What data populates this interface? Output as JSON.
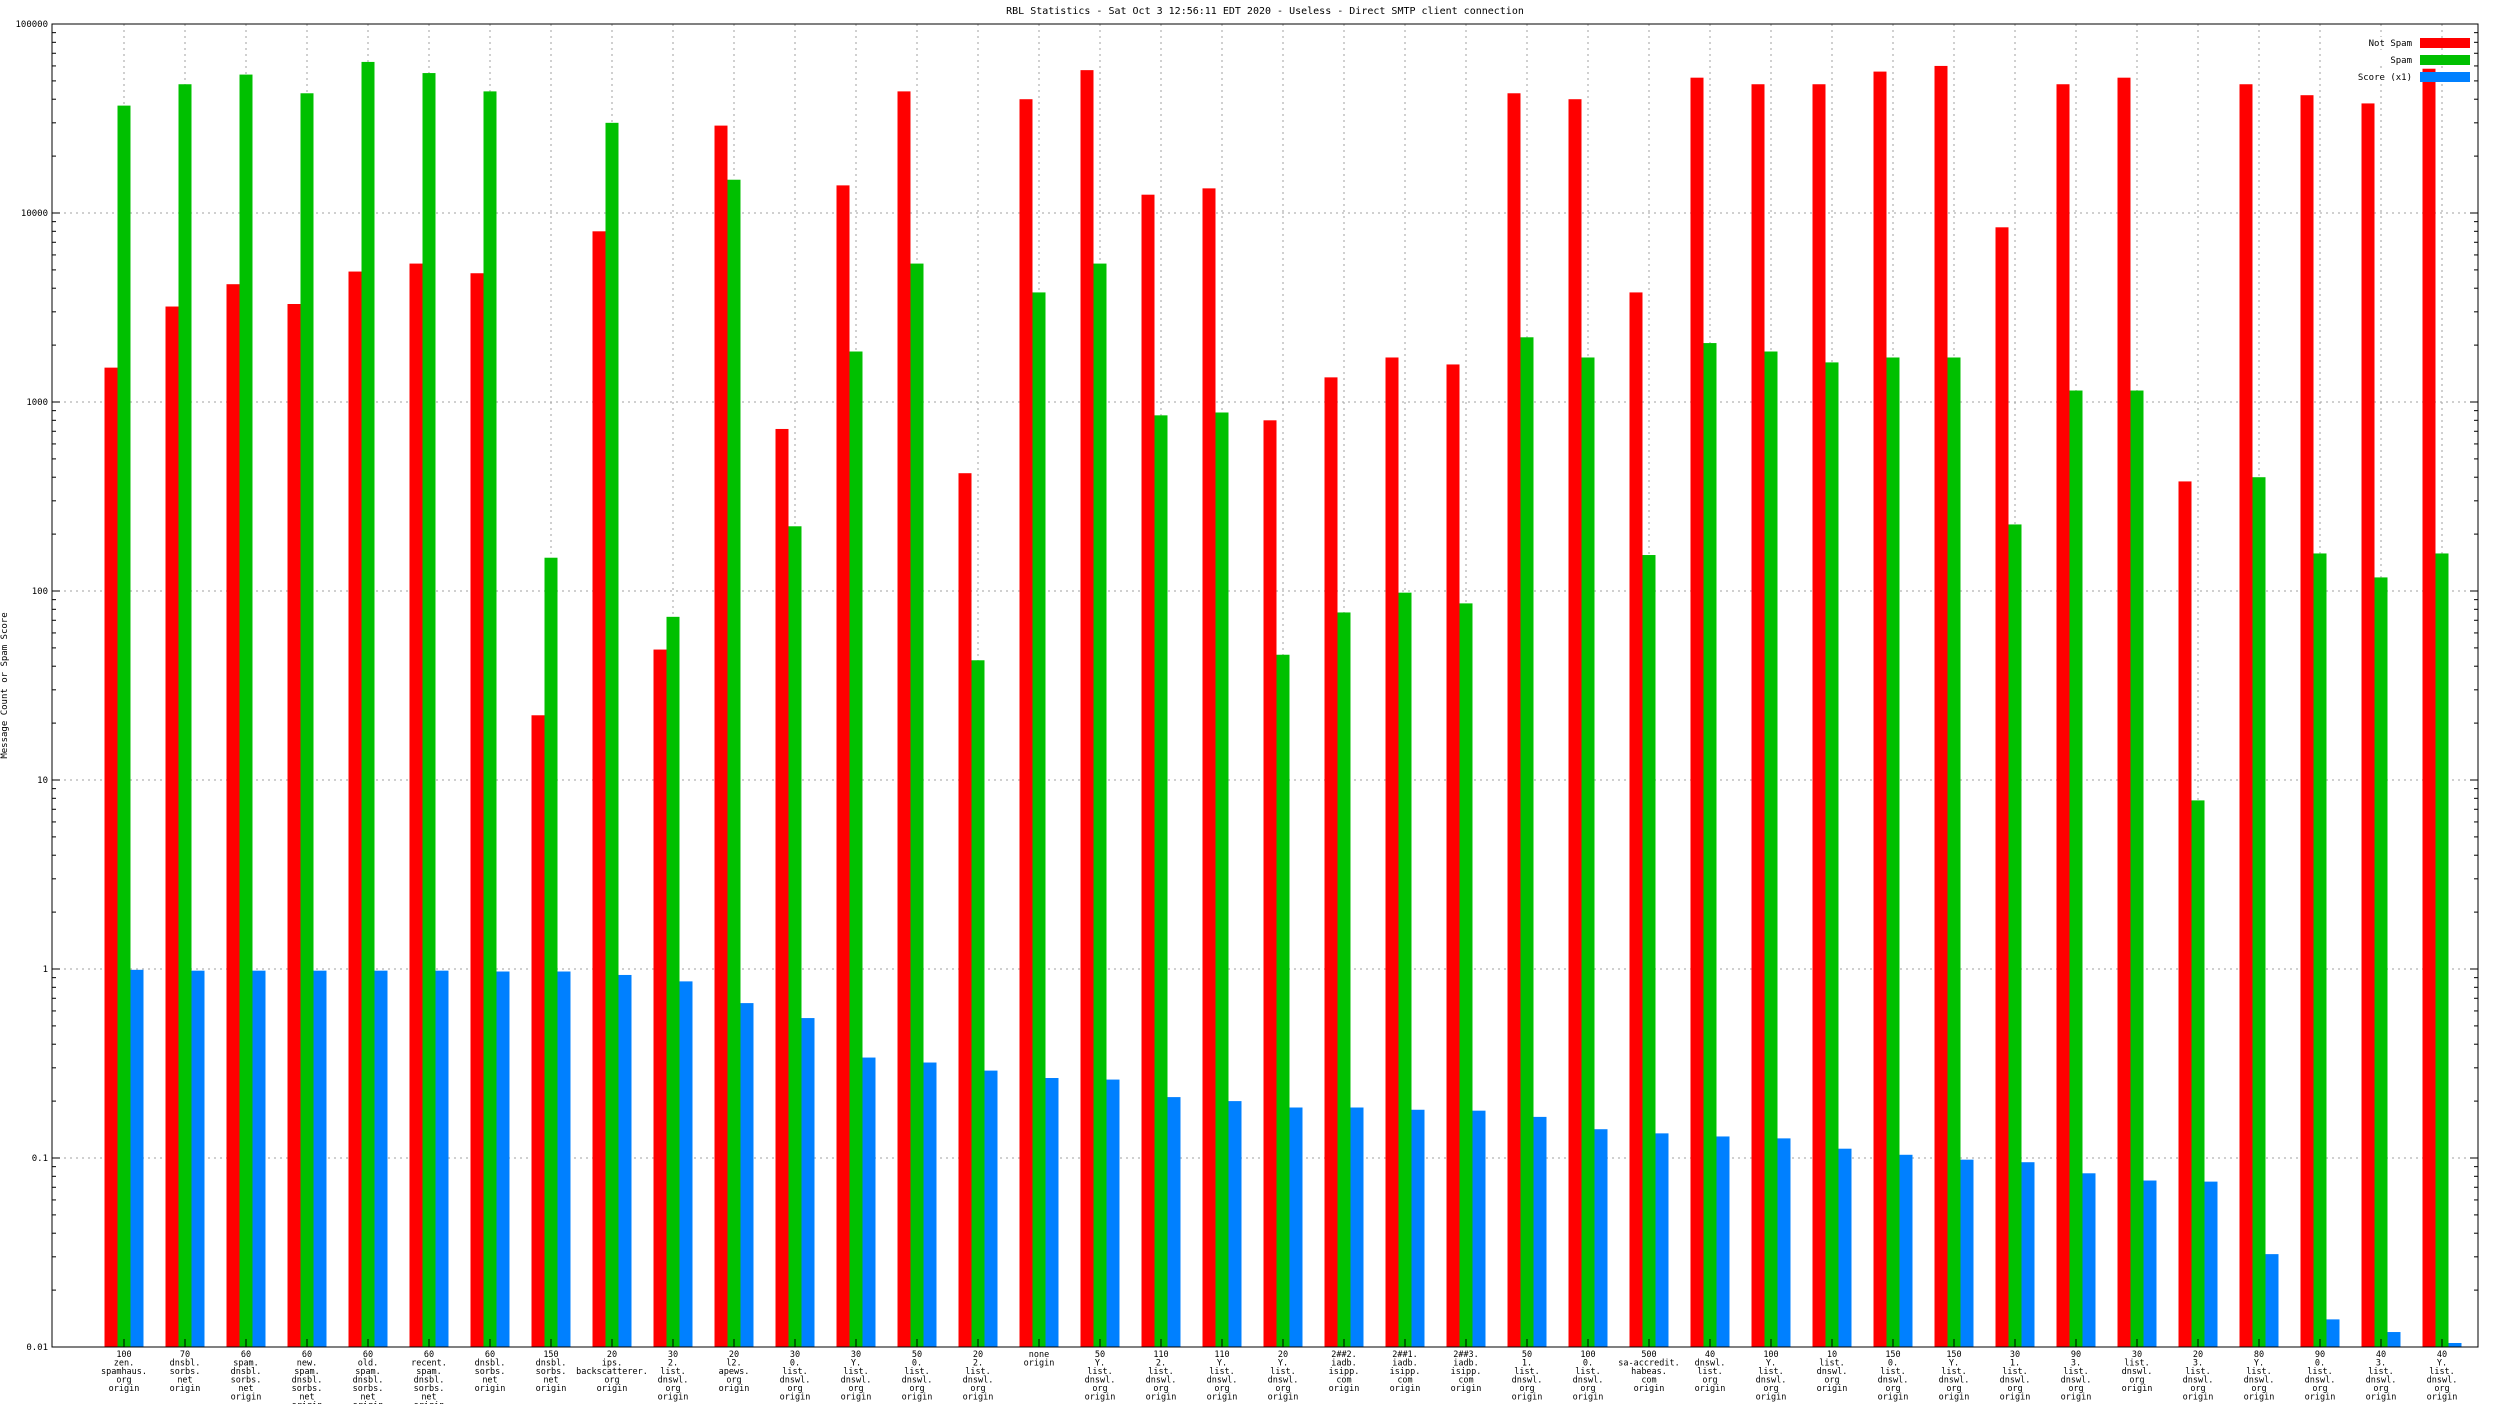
{
  "chart_data": {
    "type": "bar",
    "title": "RBL Statistics - Sat Oct  3 12:56:11 EDT 2020 - Useless - Direct SMTP client connection",
    "xlabel": "",
    "ylabel": "Message Count or Spam Score",
    "yscale": "log",
    "ylim": [
      0.01,
      100000
    ],
    "yticks": [
      "0.01",
      "0.1",
      "1",
      "10",
      "100",
      "1000",
      "10000",
      "100000"
    ],
    "grid": true,
    "legend_position": "top-right",
    "colors": {
      "Not Spam": "#ff0000",
      "Spam": "#00c000",
      "Score": "#0080ff"
    },
    "categories": [
      [
        "100",
        "zen.",
        "spamhaus.",
        "org",
        "origin"
      ],
      [
        "70",
        "dnsbl.",
        "sorbs.",
        "net",
        "origin"
      ],
      [
        "60",
        "spam.",
        "dnsbl.",
        "sorbs.",
        "net",
        "origin"
      ],
      [
        "60",
        "new.",
        "spam.",
        "dnsbl.",
        "sorbs.",
        "net",
        "origin"
      ],
      [
        "60",
        "old.",
        "spam.",
        "dnsbl.",
        "sorbs.",
        "net",
        "origin"
      ],
      [
        "60",
        "recent.",
        "spam.",
        "dnsbl.",
        "sorbs.",
        "net",
        "origin"
      ],
      [
        "60",
        "dnsbl.",
        "sorbs.",
        "net",
        "origin"
      ],
      [
        "150",
        "dnsbl.",
        "sorbs.",
        "net",
        "origin"
      ],
      [
        "20",
        "ips.",
        "backscatterer.",
        "org",
        "origin"
      ],
      [
        "30",
        "2.",
        "list.",
        "dnswl.",
        "org",
        "origin"
      ],
      [
        "20",
        "l2.",
        "apews.",
        "org",
        "origin"
      ],
      [
        "30",
        "0.",
        "list.",
        "dnswl.",
        "org",
        "origin"
      ],
      [
        "30",
        "Y.",
        "list.",
        "dnswl.",
        "org",
        "origin"
      ],
      [
        "50",
        "0.",
        "list.",
        "dnswl.",
        "org",
        "origin"
      ],
      [
        "20",
        "2.",
        "list.",
        "dnswl.",
        "org",
        "origin"
      ],
      [
        "none",
        "origin"
      ],
      [
        "50",
        "Y.",
        "list.",
        "dnswl.",
        "org",
        "origin"
      ],
      [
        "110",
        "2.",
        "list.",
        "dnswl.",
        "org",
        "origin"
      ],
      [
        "110",
        "Y.",
        "list.",
        "dnswl.",
        "org",
        "origin"
      ],
      [
        "20",
        "Y.",
        "list.",
        "dnswl.",
        "org",
        "origin"
      ],
      [
        "2##2.",
        "iadb.",
        "isipp.",
        "com",
        "origin"
      ],
      [
        "2##1.",
        "iadb.",
        "isipp.",
        "com",
        "origin"
      ],
      [
        "2##3.",
        "iadb.",
        "isipp.",
        "com",
        "origin"
      ],
      [
        "50",
        "1.",
        "list.",
        "dnswl.",
        "org",
        "origin"
      ],
      [
        "100",
        "0.",
        "list.",
        "dnswl.",
        "org",
        "origin"
      ],
      [
        "500",
        "sa-accredit.",
        "habeas.",
        "com",
        "origin"
      ],
      [
        "40",
        "dnswl.",
        "list.",
        "org",
        "origin"
      ],
      [
        "100",
        "Y.",
        "list.",
        "dnswl.",
        "org",
        "origin"
      ],
      [
        "10",
        "list.",
        "dnswl.",
        "org",
        "origin"
      ],
      [
        "150",
        "0.",
        "list.",
        "dnswl.",
        "org",
        "origin"
      ],
      [
        "150",
        "Y.",
        "list.",
        "dnswl.",
        "org",
        "origin"
      ],
      [
        "30",
        "1.",
        "list.",
        "dnswl.",
        "org",
        "origin"
      ],
      [
        "90",
        "3.",
        "list.",
        "dnswl.",
        "org",
        "origin"
      ],
      [
        "30",
        "list.",
        "dnswl.",
        "org",
        "origin"
      ],
      [
        "20",
        "3.",
        "list.",
        "dnswl.",
        "org",
        "origin"
      ],
      [
        "80",
        "Y.",
        "list.",
        "dnswl.",
        "org",
        "origin"
      ],
      [
        "90",
        "0.",
        "list.",
        "dnswl.",
        "org",
        "origin"
      ],
      [
        "40",
        "3.",
        "list.",
        "dnswl.",
        "org",
        "origin"
      ],
      [
        "40",
        "Y.",
        "list.",
        "dnswl.",
        "org",
        "origin"
      ]
    ],
    "series": [
      {
        "name": "Not Spam",
        "values": [
          1520,
          3200,
          4200,
          3300,
          4900,
          5400,
          4800,
          22,
          8000,
          49,
          29000,
          720,
          14000,
          44000,
          420,
          40000,
          57000,
          12500,
          13500,
          800,
          1350,
          1720,
          1580,
          43000,
          40000,
          3800,
          52000,
          48000,
          48000,
          56000,
          60000,
          8400,
          48000,
          52000,
          380,
          48000,
          42000,
          38000,
          58000
        ]
      },
      {
        "name": "Spam",
        "values": [
          37000,
          48000,
          54000,
          43000,
          63000,
          55000,
          44000,
          150,
          30000,
          73,
          15000,
          220,
          1850,
          5400,
          43,
          3800,
          5400,
          850,
          880,
          46,
          77,
          98,
          86,
          2200,
          1720,
          155,
          2050,
          1850,
          1620,
          1720,
          1720,
          225,
          1150,
          1150,
          7.8,
          400,
          158,
          118,
          158
        ]
      },
      {
        "name": "Score (x1)",
        "values": [
          0.99,
          0.98,
          0.98,
          0.98,
          0.98,
          0.98,
          0.97,
          0.97,
          0.93,
          0.86,
          0.66,
          0.55,
          0.34,
          0.32,
          0.29,
          0.265,
          0.26,
          0.21,
          0.2,
          0.185,
          0.185,
          0.18,
          0.178,
          0.165,
          0.142,
          0.135,
          0.13,
          0.127,
          0.112,
          0.104,
          0.098,
          0.095,
          0.083,
          0.076,
          0.075,
          0.031,
          0.014,
          0.012,
          0.0105
        ]
      }
    ]
  }
}
